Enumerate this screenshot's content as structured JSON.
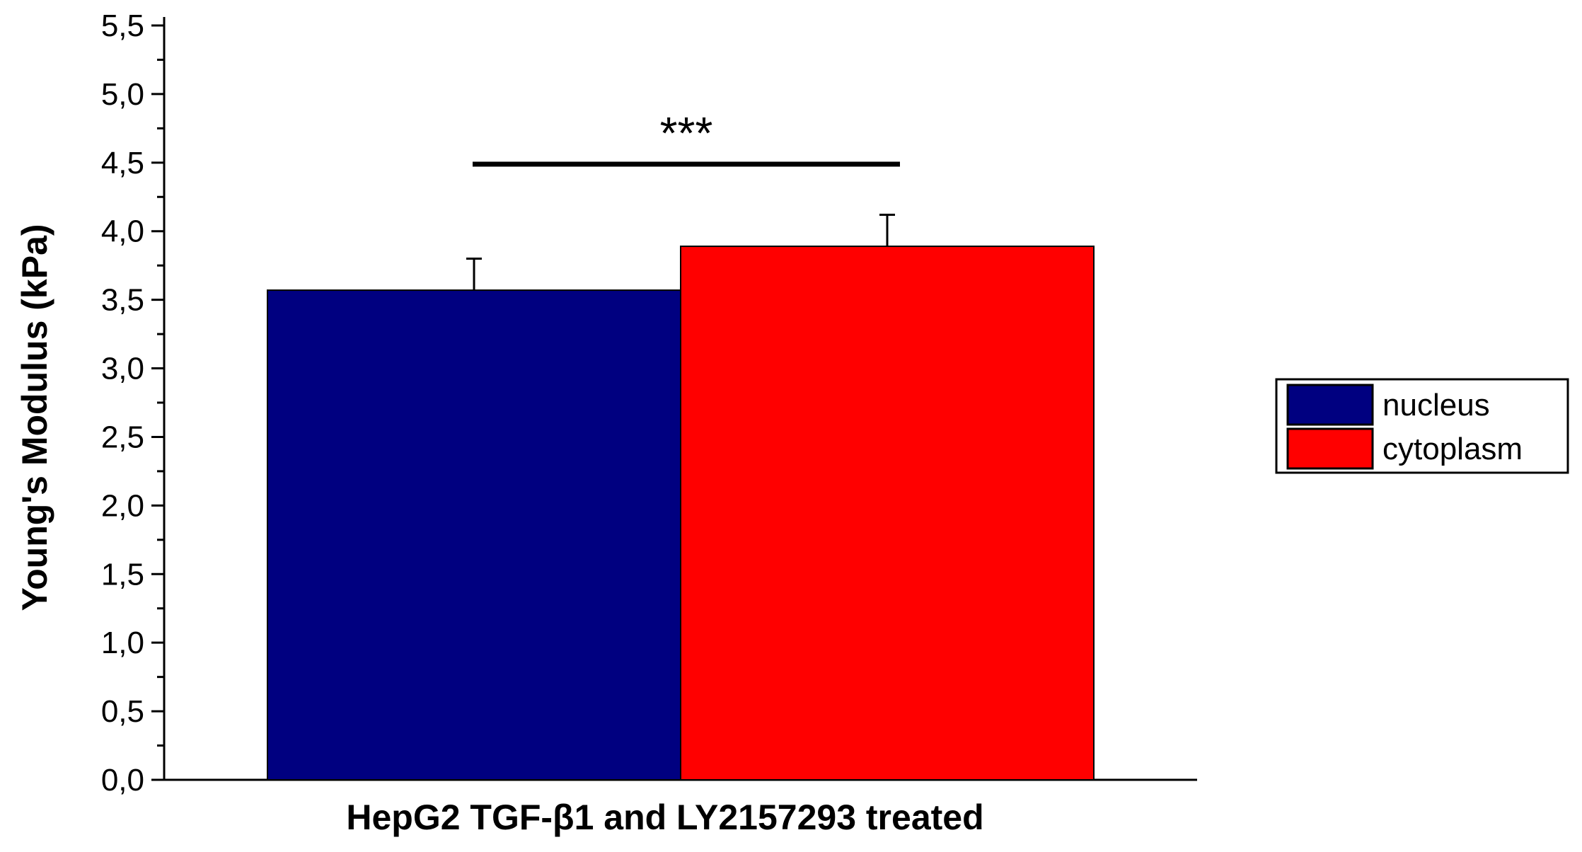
{
  "chart_data": {
    "type": "bar",
    "title": "",
    "xlabel": "HepG2 TGF-β1 and LY2157293 treated",
    "ylabel": "Young's Modulus (kPa)",
    "ylim": [
      0,
      5.5
    ],
    "yticks": [
      "0,0",
      "0,5",
      "1,0",
      "1,5",
      "2,0",
      "2,5",
      "3,0",
      "3,5",
      "4,0",
      "4,5",
      "5,0",
      "5,5"
    ],
    "categories": [
      "HepG2 TGF-β1 and LY2157293 treated"
    ],
    "series": [
      {
        "name": "nucleus",
        "values": [
          3.57
        ],
        "error": [
          0.23
        ],
        "color": "#000080"
      },
      {
        "name": "cytoplasm",
        "values": [
          3.89
        ],
        "error": [
          0.23
        ],
        "color": "#ff0000"
      }
    ],
    "annotation": "***",
    "legend": {
      "position": "right",
      "entries": [
        "nucleus",
        "cytoplasm"
      ]
    },
    "grid": false
  }
}
